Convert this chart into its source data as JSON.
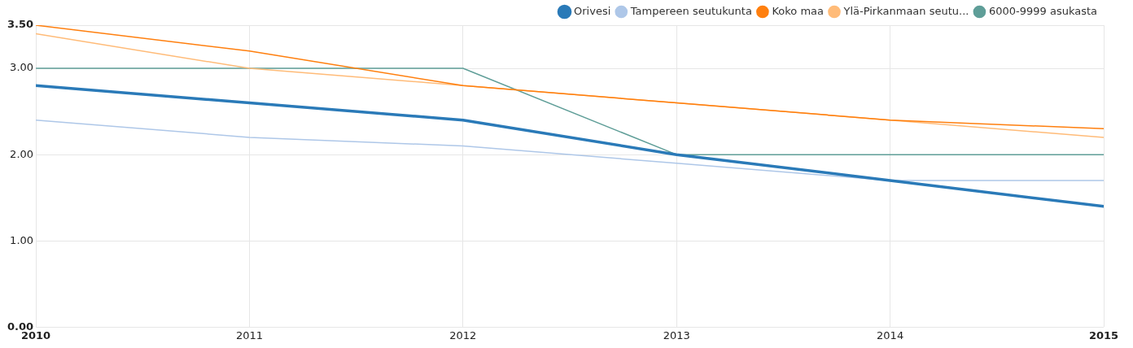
{
  "chart_data": {
    "type": "line",
    "x": [
      2010,
      2011,
      2012,
      2013,
      2014,
      2015
    ],
    "series": [
      {
        "name": "Orivesi",
        "color": "#2a7ab8",
        "values": [
          2.8,
          2.6,
          2.4,
          2.0,
          1.7,
          1.4
        ]
      },
      {
        "name": "Tampereen seutukunta",
        "color": "#aec7e8",
        "values": [
          2.4,
          2.2,
          2.1,
          1.9,
          1.7,
          1.7
        ]
      },
      {
        "name": "Koko maa",
        "color": "#ff7f0e",
        "values": [
          3.5,
          3.2,
          2.8,
          2.6,
          2.4,
          2.3
        ]
      },
      {
        "name": "Ylä-Pirkanmaan seutu...",
        "color": "#ffbb78",
        "values": [
          3.4,
          3.0,
          2.8,
          2.6,
          2.4,
          2.2
        ]
      },
      {
        "name": "6000-9999 asukasta",
        "color": "#5f9e98",
        "values": [
          3.0,
          3.0,
          3.0,
          2.0,
          2.0,
          2.0
        ]
      }
    ],
    "xlim": [
      2010,
      2015
    ],
    "xticks": [
      2010,
      2011,
      2012,
      2013,
      2014,
      2015
    ],
    "ylim": [
      0,
      3.5
    ],
    "yticks": [
      {
        "value": 0,
        "label": "0.00"
      },
      {
        "value": 1,
        "label": "1.00"
      },
      {
        "value": 2,
        "label": "2.00"
      },
      {
        "value": 3,
        "label": "3.00"
      },
      {
        "value": 3.5,
        "label": "3.50"
      }
    ],
    "grid": true,
    "legend": "top right",
    "marker": "none",
    "line_style": "solid"
  }
}
